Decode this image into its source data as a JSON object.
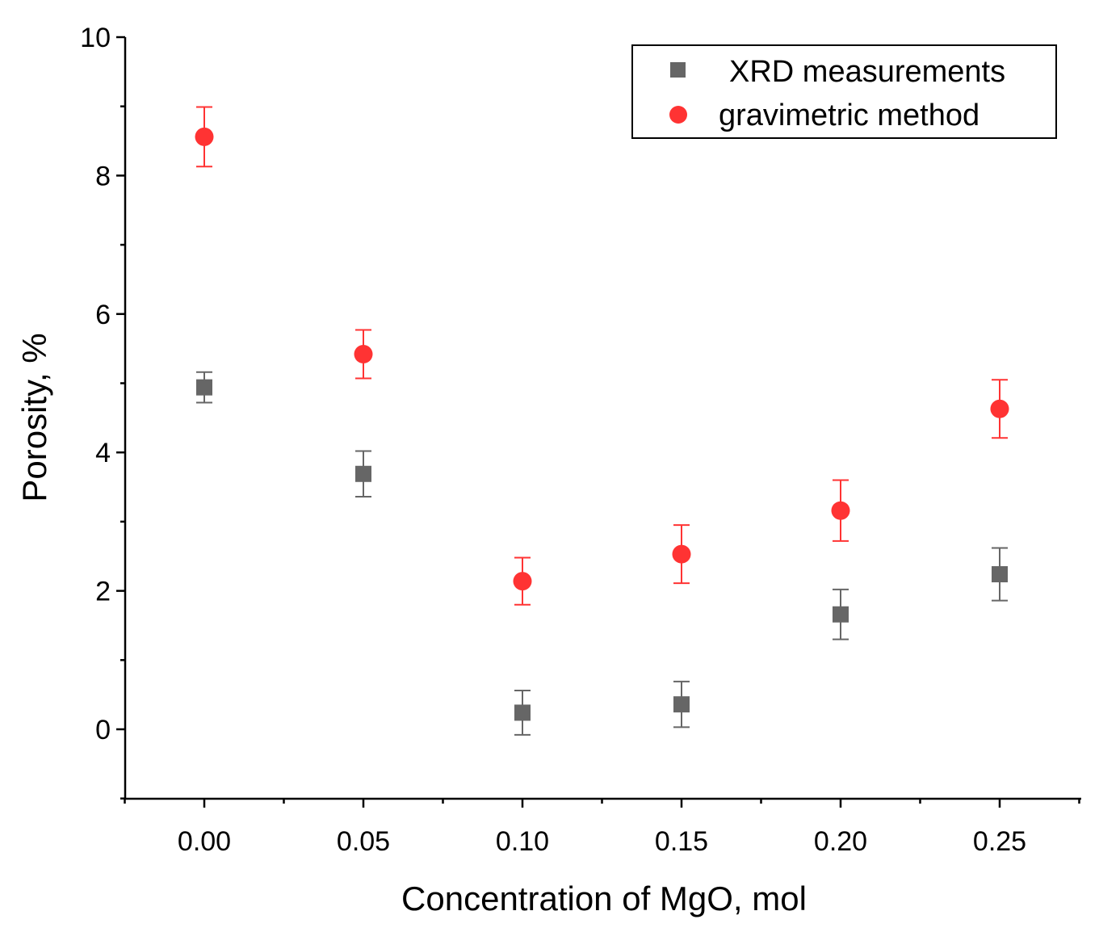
{
  "chart_data": {
    "type": "scatter",
    "title": "",
    "xlabel": "Concentration of MgO, mol",
    "ylabel": "Porosity, %",
    "xlim": [
      -0.025,
      0.275
    ],
    "ylim": [
      -1,
      10
    ],
    "xticks": [
      0.0,
      0.05,
      0.1,
      0.15,
      0.2,
      0.25
    ],
    "xtick_labels": [
      "0.00",
      "0.05",
      "0.10",
      "0.15",
      "0.20",
      "0.25"
    ],
    "yticks": [
      0,
      2,
      4,
      6,
      8,
      10
    ],
    "ytick_labels": [
      "0",
      "2",
      "4",
      "6",
      "8",
      "10"
    ],
    "grid": false,
    "legend_position": "top-right",
    "series": [
      {
        "name": "XRD measurements",
        "marker": "square",
        "color": "#666666",
        "x": [
          0.0,
          0.05,
          0.1,
          0.15,
          0.2,
          0.25
        ],
        "y": [
          4.94,
          3.69,
          0.24,
          0.36,
          1.66,
          2.24
        ],
        "error": [
          0.22,
          0.33,
          0.32,
          0.33,
          0.36,
          0.38
        ]
      },
      {
        "name": "gravimetric method",
        "marker": "circle",
        "color": "#ff3333",
        "x": [
          0.0,
          0.05,
          0.1,
          0.15,
          0.2,
          0.25
        ],
        "y": [
          8.56,
          5.42,
          2.14,
          2.53,
          3.16,
          4.63
        ],
        "error": [
          0.43,
          0.35,
          0.34,
          0.42,
          0.44,
          0.42
        ]
      }
    ]
  }
}
